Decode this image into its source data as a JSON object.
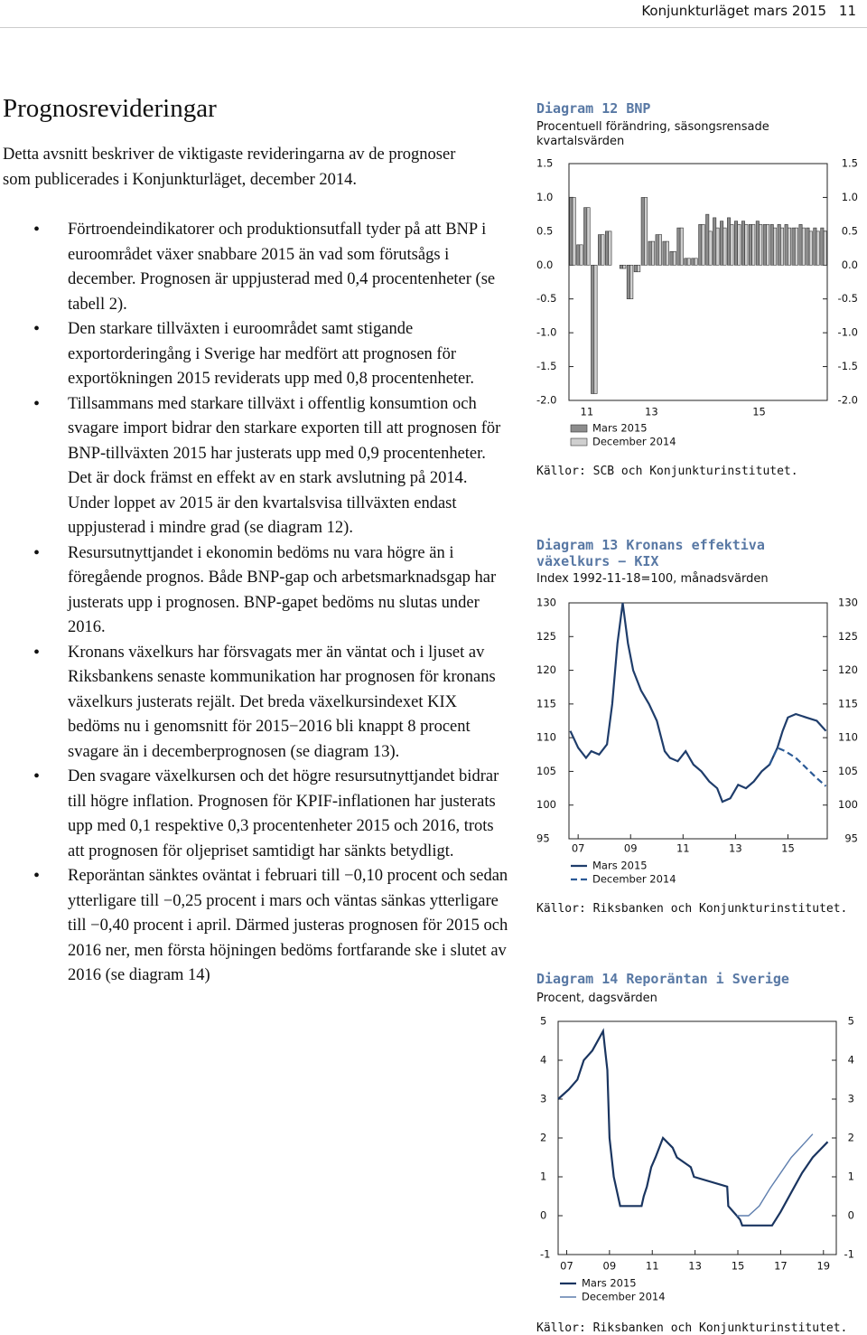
{
  "header": {
    "publication": "Konjunkturläget mars 2015",
    "page_number": "11"
  },
  "section": {
    "title": "Prognosrevideringar",
    "intro": "Detta avsnitt beskriver de viktigaste revideringarna av de prognoser som publicerades i Konjunkturläget, december 2014.",
    "bullets": [
      "Förtroendeindikatorer och produktionsutfall tyder på att BNP i euroområdet växer snabbare 2015 än vad som förutsågs i december. Prognosen är uppjusterad med 0,4 procentenheter (se tabell 2).",
      "Den starkare tillväxten i euroområdet samt stigande exportorderingång i Sverige har medfört att prognosen för exportökningen 2015 reviderats upp med 0,8 procentenheter.",
      "Tillsammans med starkare tillväxt i offentlig konsumtion och svagare import bidrar den starkare exporten till att prognosen för BNP-tillväxten 2015 har justerats upp med 0,9 procentenheter. Det är dock främst en effekt av en stark avslutning på 2014. Under loppet av 2015 är den kvartalsvisa tillväxten endast uppjusterad i mindre grad (se diagram 12).",
      "Resursutnyttjandet i ekonomin bedöms nu vara högre än i föregående prognos. Både BNP-gap och arbetsmarknadsgap har justerats upp i prognosen. BNP-gapet bedöms nu slutas under 2016.",
      "Kronans växelkurs har försvagats mer än väntat och i ljuset av Riksbankens senaste kommunikation har prognosen för kronans växelkurs justerats rejält. Det breda växelkursindexet KIX bedöms nu i genomsnitt för 2015−2016 bli knappt 8 procent svagare än i decemberprognosen (se diagram 13).",
      "Den svagare växelkursen och det högre resursutnyttjandet bidrar till högre inflation. Prognosen för KPIF-inflationen har justerats upp med 0,1 respektive 0,3 procentenheter 2015 och 2016, trots att prognosen för oljepriset samtidigt har sänkts betydligt.",
      "Reporäntan sänktes oväntat i februari till −0,10 procent och sedan ytterligare till −0,25 procent i mars och väntas sänkas ytterligare till −0,40 procent i april. Därmed justeras prognosen för 2015 och 2016 ner, men första höjningen bedöms fortfarande ske i slutet av 2016 (se diagram 14)"
    ]
  },
  "chart_data": [
    {
      "type": "bar",
      "title": "Diagram 12 BNP",
      "subtitle": "Procentuell förändring, säsongsrensade kvartalsvärden",
      "categories": [
        null,
        null,
        "11",
        null,
        null,
        null,
        null,
        null,
        null,
        null,
        null,
        "13",
        null,
        null,
        null,
        null,
        null,
        null,
        null,
        null,
        null,
        null,
        null,
        null,
        null,
        null,
        "15",
        null,
        null,
        null,
        null,
        null,
        null,
        null,
        null,
        null
      ],
      "series": [
        {
          "name": "Mars 2015",
          "color": "#8c8c8c",
          "values": [
            1.0,
            0.3,
            0.85,
            -1.9,
            0.45,
            0.5,
            0.0,
            -0.05,
            -0.5,
            -0.1,
            1.0,
            0.35,
            0.45,
            0.35,
            0.2,
            0.55,
            0.1,
            0.1,
            0.6,
            0.75,
            0.7,
            0.65,
            0.7,
            0.65,
            0.65,
            0.6,
            0.65,
            0.6,
            0.6,
            0.6,
            0.6,
            0.55,
            0.6,
            0.55,
            0.55,
            0.55
          ]
        },
        {
          "name": "December 2014",
          "color": "#cfcfcf",
          "values": [
            1.0,
            0.3,
            0.85,
            -1.9,
            0.45,
            0.5,
            0.0,
            -0.05,
            -0.5,
            -0.1,
            1.0,
            0.35,
            0.45,
            0.35,
            0.2,
            0.55,
            0.1,
            0.1,
            0.6,
            0.5,
            0.55,
            0.55,
            0.6,
            0.6,
            0.6,
            0.6,
            0.6,
            0.6,
            0.55,
            0.55,
            0.55,
            0.55,
            0.55,
            0.5,
            0.5,
            0.5
          ]
        }
      ],
      "ylim": [
        -2.0,
        1.5
      ],
      "yticks": [
        1.5,
        {
          "value": 1.0,
          "label": "1.0"
        },
        0.5,
        {
          "value": 0.0,
          "label": "0.0"
        },
        -0.5,
        {
          "value": -1.0,
          "label": "-1.0"
        },
        -1.5,
        {
          "value": -2.0,
          "label": "-2.0"
        }
      ],
      "source": "Källor: SCB och Konjunkturinstitutet."
    },
    {
      "type": "line",
      "title": "Diagram 13 Kronans effektiva växelkurs − KIX",
      "subtitle": "Index 1992-11-18=100, månadsvärden",
      "series": [
        {
          "name": "Mars 2015",
          "color": "#1f3d6b",
          "line_style": "solid",
          "x": [
            2006.7,
            2007.0,
            2007.3,
            2007.5,
            2007.8,
            2008.1,
            2008.3,
            2008.5,
            2008.7,
            2008.9,
            2009.1,
            2009.4,
            2009.7,
            2010.0,
            2010.3,
            2010.5,
            2010.8,
            2011.1,
            2011.4,
            2011.7,
            2012.0,
            2012.3,
            2012.5,
            2012.8,
            2013.1,
            2013.4,
            2013.7,
            2014.0,
            2014.3,
            2014.6,
            2014.8,
            2015.0,
            2015.3,
            2015.7,
            2016.1,
            2016.45
          ],
          "values": [
            111,
            108.5,
            107,
            108,
            107.5,
            109,
            115,
            124,
            130,
            124,
            120,
            117,
            115,
            112.5,
            108,
            107,
            106.5,
            108,
            106,
            105,
            103.5,
            102.5,
            100.5,
            101,
            103,
            102.5,
            103.5,
            105,
            106,
            108.5,
            111,
            113,
            113.5,
            113,
            112.5,
            111
          ]
        },
        {
          "name": "December 2014",
          "color": "#2b5a96",
          "line_style": "dashed",
          "x": [
            2014.3,
            2014.6,
            2014.9,
            2015.3,
            2015.7,
            2016.1,
            2016.45
          ],
          "values": [
            106,
            108.5,
            108,
            107,
            105.5,
            104,
            102.8
          ]
        }
      ],
      "xlim": [
        2006.65,
        2016.5
      ],
      "xticks": [
        {
          "value": 2007,
          "label": "07"
        },
        {
          "value": 2009,
          "label": "09"
        },
        {
          "value": 2011,
          "label": "11"
        },
        {
          "value": 2013,
          "label": "13"
        },
        {
          "value": 2015,
          "label": "15"
        }
      ],
      "ylim": [
        95,
        130
      ],
      "yticks": [
        130,
        125,
        120,
        115,
        110,
        105,
        100,
        95
      ],
      "source": "Källor: Riksbanken och Konjunkturinstitutet."
    },
    {
      "type": "line",
      "title": "Diagram 14 Reporäntan i Sverige",
      "subtitle": "Procent, dagsvärden",
      "series": [
        {
          "name": "Mars 2015",
          "color": "#1a3560",
          "line_style": "solid",
          "x": [
            2006.6,
            2007.1,
            2007.5,
            2007.8,
            2008.2,
            2008.7,
            2008.8,
            2008.9,
            2009.0,
            2009.2,
            2009.5,
            2010.5,
            2010.6,
            2010.75,
            2010.95,
            2011.15,
            2011.5,
            2011.95,
            2012.15,
            2012.8,
            2012.95,
            2014.5,
            2014.55,
            2014.95,
            2015.1,
            2015.2,
            2016.6,
            2017.0,
            2017.5,
            2018.0,
            2018.5,
            2019.2
          ],
          "values": [
            3.0,
            3.25,
            3.5,
            4.0,
            4.25,
            4.75,
            4.25,
            3.75,
            2.0,
            1.0,
            0.25,
            0.25,
            0.5,
            0.75,
            1.25,
            1.5,
            2.0,
            1.75,
            1.5,
            1.25,
            1.0,
            0.75,
            0.25,
            0.0,
            -0.1,
            -0.25,
            -0.25,
            0.1,
            0.6,
            1.1,
            1.5,
            1.9
          ]
        },
        {
          "name": "December 2014",
          "color": "#5f7fae",
          "line_style": "thin",
          "x": [
            2014.95,
            2015.5,
            2016.0,
            2016.5,
            2017.0,
            2017.5,
            2018.0,
            2018.5
          ],
          "values": [
            0.0,
            0.0,
            0.25,
            0.7,
            1.1,
            1.5,
            1.8,
            2.1
          ]
        }
      ],
      "xlim": [
        2006.6,
        2019.6
      ],
      "xticks": [
        {
          "value": 2007,
          "label": "07"
        },
        {
          "value": 2009,
          "label": "09"
        },
        {
          "value": 2011,
          "label": "11"
        },
        {
          "value": 2013,
          "label": "13"
        },
        {
          "value": 2015,
          "label": "15"
        },
        {
          "value": 2017,
          "label": "17"
        },
        {
          "value": 2019,
          "label": "19"
        }
      ],
      "ylim": [
        -1,
        5
      ],
      "yticks": [
        5,
        4,
        3,
        2,
        1,
        0,
        -1
      ],
      "source": "Källor: Riksbanken och Konjunkturinstitutet."
    }
  ]
}
